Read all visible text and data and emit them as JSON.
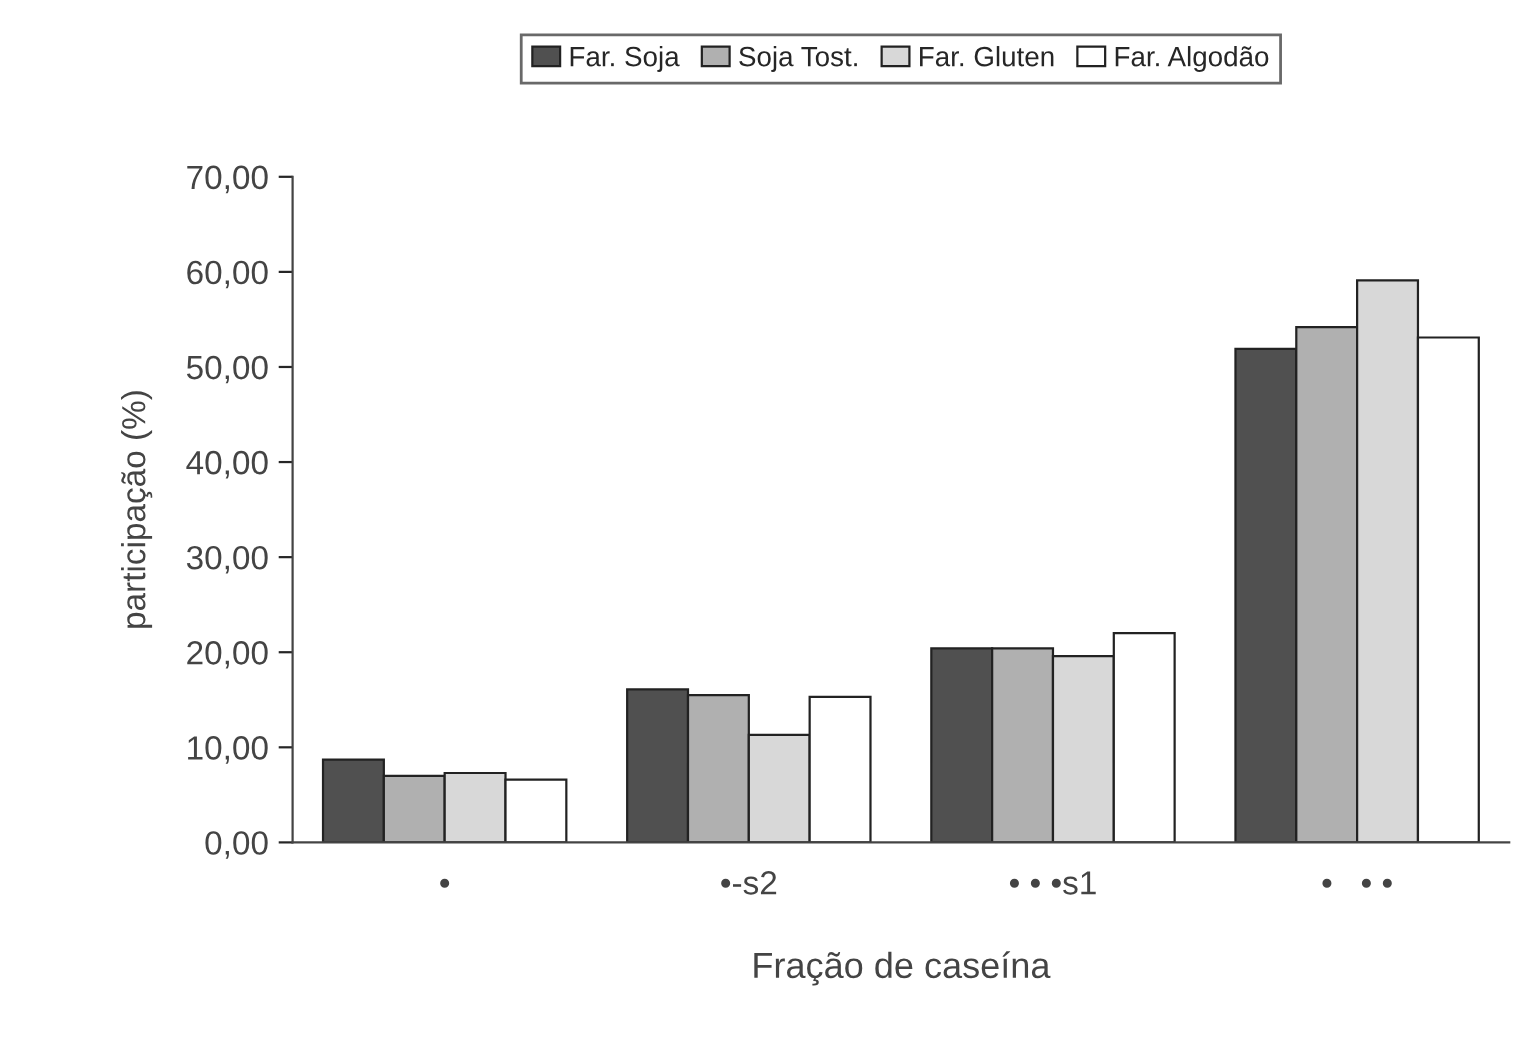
{
  "chart_data": {
    "type": "bar",
    "xlabel": "Fração de caseína",
    "ylabel": "participação (%)",
    "categories": [
      "•",
      "•-s2",
      "• • •s1",
      "•   • •"
    ],
    "series": [
      {
        "name": "Far. Soja",
        "color": "#505050",
        "values": [
          8.7,
          16.1,
          20.4,
          51.9
        ]
      },
      {
        "name": "Soja Tost.",
        "color": "#b0b0b0",
        "values": [
          7.0,
          15.5,
          20.4,
          54.2
        ]
      },
      {
        "name": "Far. Gluten",
        "color": "#d8d8d8",
        "values": [
          7.3,
          11.3,
          19.6,
          59.1
        ]
      },
      {
        "name": "Far. Algodão",
        "color": "#ffffff",
        "values": [
          6.6,
          15.3,
          22.0,
          53.1
        ]
      }
    ],
    "ylim": [
      0,
      70
    ],
    "yticks": [
      {
        "value": 0,
        "label": "0,00"
      },
      {
        "value": 10,
        "label": "10,00"
      },
      {
        "value": 20,
        "label": "20,00"
      },
      {
        "value": 30,
        "label": "30,00"
      },
      {
        "value": 40,
        "label": "40,00"
      },
      {
        "value": 50,
        "label": "50,00"
      },
      {
        "value": 60,
        "label": "60,00"
      },
      {
        "value": 70,
        "label": "70,00"
      }
    ],
    "grid": false,
    "legend": "top"
  }
}
